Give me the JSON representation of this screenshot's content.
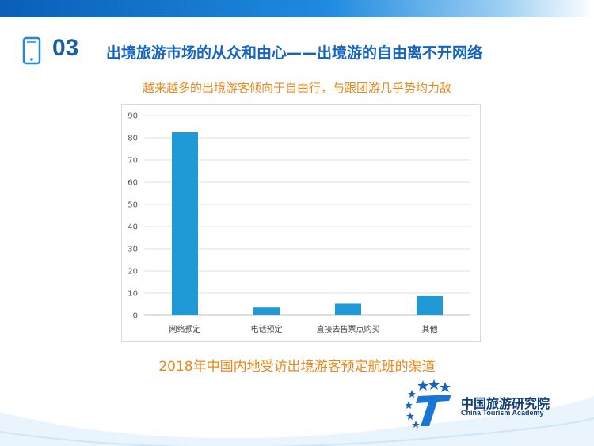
{
  "header": {
    "section_number": "03",
    "title": "出境旅游市场的从众和由心——出境游的自由离不开网络"
  },
  "subtitle": "越来越多的出境游客倾向于自由行，与跟团游几乎势均力敌",
  "caption": "2018年中国内地受访出境游客预定航班的渠道",
  "logo": {
    "name_cn": "中国旅游研究院",
    "name_en": "China Tourism Academy"
  },
  "colors": {
    "bar": "#1f9ad6",
    "title": "#1565c0",
    "accent": "#e8891c"
  },
  "icons": [
    "phone-icon",
    "academy-logo-icon"
  ],
  "chart_data": {
    "type": "bar",
    "categories": [
      "网络预定",
      "电话预定",
      "直接去售票点购买",
      "其他"
    ],
    "values": [
      82.5,
      3.5,
      5.2,
      8.6
    ],
    "ylim": [
      0,
      90
    ],
    "yticks": [
      0,
      10,
      20,
      30,
      40,
      50,
      60,
      70,
      80,
      90
    ],
    "grid": true,
    "legend": "none"
  }
}
